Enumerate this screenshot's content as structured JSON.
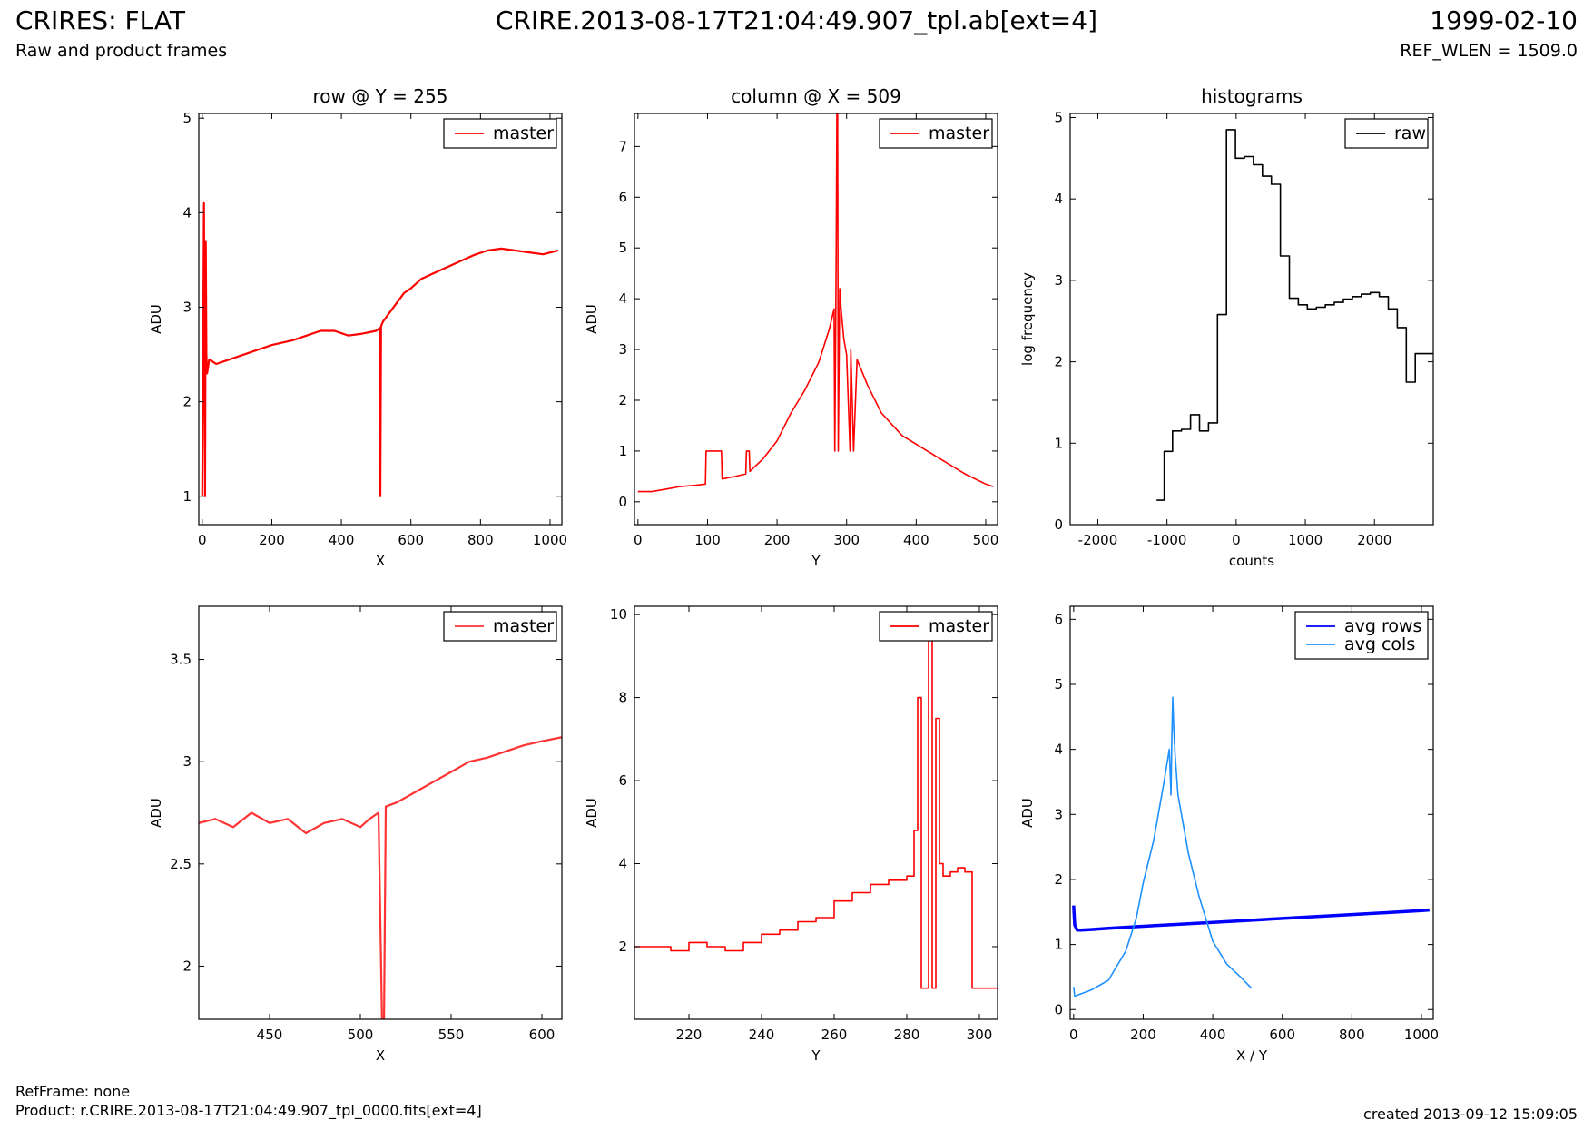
{
  "header": {
    "title_left": "CRIRES: FLAT",
    "subtitle_left": "Raw and product frames",
    "title_center": "CRIRE.2013-08-17T21:04:49.907_tpl.ab[ext=4]",
    "title_right": "1999-02-10",
    "subtitle_right": "REF_WLEN = 1509.0"
  },
  "footer": {
    "ref_frame": "RefFrame: none",
    "product": "Product: r.CRIRE.2013-08-17T21:04:49.907_tpl_0000.fits[ext=4]",
    "created": "created 2013-09-12 15:09:05"
  },
  "chart_data": [
    {
      "id": "row",
      "type": "line",
      "title": "row @ Y = 255",
      "xlabel": "X",
      "ylabel": "ADU",
      "xlim": [
        -10,
        1034
      ],
      "ylim": [
        0.7,
        5.05
      ],
      "xticks": [
        0,
        200,
        400,
        600,
        800,
        1000
      ],
      "yticks": [
        1,
        2,
        3,
        4,
        5
      ],
      "legend": "top-right",
      "series": [
        {
          "name": "master",
          "color": "#ff0000",
          "x": [
            0,
            5,
            8,
            10,
            12,
            14,
            20,
            40,
            80,
            120,
            160,
            200,
            260,
            300,
            340,
            380,
            420,
            460,
            500,
            510,
            512,
            514,
            520,
            540,
            560,
            580,
            600,
            630,
            660,
            690,
            720,
            750,
            780,
            820,
            860,
            900,
            940,
            980,
            1023
          ],
          "y": [
            1.0,
            4.1,
            1.0,
            3.7,
            2.5,
            2.3,
            2.45,
            2.4,
            2.45,
            2.5,
            2.55,
            2.6,
            2.65,
            2.7,
            2.75,
            2.75,
            2.7,
            2.72,
            2.75,
            2.78,
            1.0,
            2.8,
            2.85,
            2.95,
            3.05,
            3.15,
            3.2,
            3.3,
            3.35,
            3.4,
            3.45,
            3.5,
            3.55,
            3.6,
            3.62,
            3.6,
            3.58,
            3.56,
            3.6
          ]
        }
      ]
    },
    {
      "id": "column",
      "type": "line",
      "title": "column @ X = 509",
      "xlabel": "Y",
      "ylabel": "ADU",
      "xlim": [
        -5,
        517
      ],
      "ylim": [
        -0.45,
        7.65
      ],
      "xticks": [
        0,
        100,
        200,
        300,
        400,
        500
      ],
      "yticks": [
        0,
        1,
        2,
        3,
        4,
        5,
        6,
        7
      ],
      "legend": "top-right",
      "series": [
        {
          "name": "master",
          "color": "#ff0000",
          "x": [
            0,
            20,
            40,
            60,
            80,
            97,
            98,
            120,
            121,
            140,
            155,
            156,
            160,
            161,
            180,
            200,
            220,
            240,
            260,
            275,
            282,
            283,
            285,
            286,
            287,
            288,
            290,
            292,
            296,
            300,
            305,
            306,
            310,
            315,
            330,
            350,
            380,
            410,
            440,
            470,
            500,
            511
          ],
          "y": [
            0.2,
            0.2,
            0.25,
            0.3,
            0.32,
            0.35,
            1.0,
            1.0,
            0.45,
            0.5,
            0.55,
            1.0,
            1.0,
            0.6,
            0.85,
            1.2,
            1.75,
            2.2,
            2.75,
            3.4,
            3.8,
            1.0,
            4.8,
            7.7,
            7.7,
            1.0,
            4.2,
            3.8,
            3.2,
            2.9,
            1.0,
            3.0,
            1.0,
            2.8,
            2.3,
            1.75,
            1.3,
            1.05,
            0.8,
            0.55,
            0.35,
            0.3
          ]
        }
      ]
    },
    {
      "id": "histograms",
      "type": "line",
      "title": "histograms",
      "xlabel": "counts",
      "ylabel": "log frequency",
      "xlim": [
        -2400,
        2850
      ],
      "ylim": [
        0,
        5.05
      ],
      "xticks": [
        -2000,
        -1000,
        0,
        1000,
        2000
      ],
      "yticks": [
        0,
        1,
        2,
        3,
        4,
        5
      ],
      "legend": "top-right",
      "series": [
        {
          "name": "raw",
          "color": "#000000",
          "step": true,
          "x": [
            -1150,
            -1040,
            -920,
            -790,
            -660,
            -530,
            -400,
            -270,
            -140,
            -10,
            120,
            250,
            380,
            510,
            640,
            770,
            900,
            1030,
            1160,
            1290,
            1420,
            1550,
            1680,
            1810,
            1940,
            2070,
            2200,
            2330,
            2460,
            2590,
            2720,
            2850
          ],
          "y": [
            0.3,
            0.9,
            1.15,
            1.17,
            1.35,
            1.15,
            1.25,
            2.58,
            4.85,
            4.5,
            4.52,
            4.42,
            4.28,
            4.18,
            3.3,
            2.78,
            2.7,
            2.65,
            2.67,
            2.7,
            2.73,
            2.77,
            2.8,
            2.83,
            2.85,
            2.8,
            2.65,
            2.42,
            1.75,
            2.1,
            2.1,
            2.1
          ]
        }
      ]
    },
    {
      "id": "row-zoom",
      "type": "line",
      "xlabel": "X",
      "ylabel": "ADU",
      "xlim": [
        411,
        611
      ],
      "ylim": [
        1.74,
        3.76
      ],
      "xticks": [
        450,
        500,
        550,
        600
      ],
      "yticks": [
        2.0,
        2.5,
        3.0,
        3.5
      ],
      "legend": "top-right",
      "series": [
        {
          "name": "master",
          "color": "#ff3333",
          "x": [
            411,
            420,
            430,
            440,
            450,
            460,
            470,
            480,
            490,
            500,
            505,
            510,
            512,
            513,
            514,
            520,
            530,
            540,
            550,
            560,
            570,
            580,
            590,
            600,
            611
          ],
          "y": [
            2.7,
            2.72,
            2.68,
            2.75,
            2.7,
            2.72,
            2.65,
            2.7,
            2.72,
            2.68,
            2.72,
            2.75,
            1.7,
            1.7,
            2.78,
            2.8,
            2.85,
            2.9,
            2.95,
            3.0,
            3.02,
            3.05,
            3.08,
            3.1,
            3.12
          ]
        }
      ]
    },
    {
      "id": "column-zoom",
      "type": "line",
      "xlabel": "Y",
      "ylabel": "ADU",
      "xlim": [
        205,
        305
      ],
      "ylim": [
        0.25,
        10.2
      ],
      "xticks": [
        220,
        240,
        260,
        280,
        300
      ],
      "yticks": [
        2,
        4,
        6,
        8,
        10
      ],
      "legend": "top-right",
      "series": [
        {
          "name": "master",
          "color": "#ff0000",
          "step": true,
          "x": [
            205,
            210,
            215,
            220,
            225,
            230,
            235,
            240,
            245,
            250,
            255,
            260,
            265,
            270,
            275,
            280,
            282,
            283,
            284,
            286,
            287,
            288,
            289,
            290,
            292,
            294,
            296,
            298,
            305
          ],
          "y": [
            2.0,
            2.0,
            1.9,
            2.1,
            2.0,
            1.9,
            2.1,
            2.3,
            2.4,
            2.6,
            2.7,
            3.1,
            3.3,
            3.5,
            3.6,
            3.7,
            4.8,
            8.0,
            1.0,
            9.6,
            1.0,
            7.5,
            4.0,
            3.7,
            3.8,
            3.9,
            3.8,
            1.0,
            1.0
          ]
        }
      ]
    },
    {
      "id": "averages",
      "type": "line",
      "xlabel": "X / Y",
      "ylabel": "ADU",
      "xlim": [
        -10,
        1034
      ],
      "ylim": [
        -0.15,
        6.2
      ],
      "xticks": [
        0,
        200,
        400,
        600,
        800,
        1000
      ],
      "yticks": [
        0,
        1,
        2,
        3,
        4,
        5,
        6
      ],
      "legend": "top-right",
      "series": [
        {
          "name": "avg rows",
          "color": "#0000ff",
          "x": [
            0,
            3,
            10,
            20,
            50,
            100,
            200,
            300,
            400,
            500,
            600,
            700,
            800,
            900,
            1000,
            1023
          ],
          "y": [
            1.6,
            1.3,
            1.22,
            1.22,
            1.23,
            1.25,
            1.28,
            1.31,
            1.34,
            1.37,
            1.4,
            1.43,
            1.46,
            1.49,
            1.52,
            1.53
          ]
        },
        {
          "name": "avg cols",
          "color": "#1e90ff",
          "x": [
            0,
            3,
            10,
            50,
            100,
            150,
            180,
            200,
            230,
            260,
            275,
            280,
            282,
            285,
            288,
            292,
            300,
            330,
            360,
            400,
            440,
            480,
            511
          ],
          "y": [
            0.35,
            0.2,
            0.22,
            0.3,
            0.45,
            0.9,
            1.4,
            1.95,
            2.6,
            3.5,
            4.0,
            3.3,
            4.1,
            4.8,
            4.3,
            3.9,
            3.3,
            2.4,
            1.75,
            1.05,
            0.7,
            0.5,
            0.33
          ]
        }
      ]
    }
  ]
}
